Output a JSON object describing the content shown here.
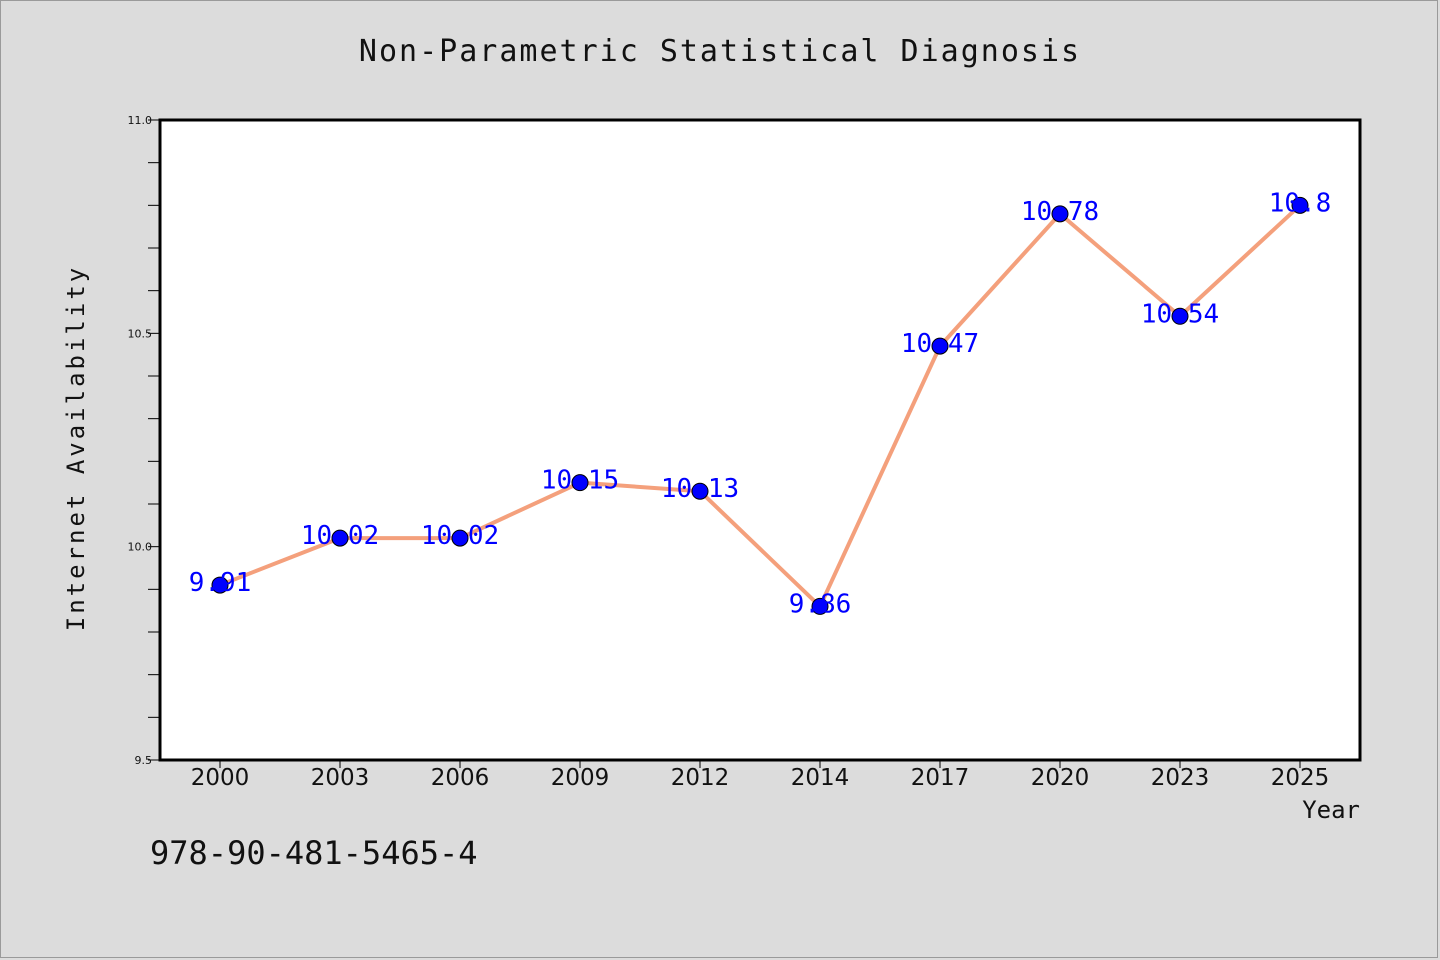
{
  "chart_data": {
    "type": "line",
    "title": "Non-Parametric Statistical Diagnosis",
    "xlabel": "Year",
    "ylabel": "Internet Availability",
    "categories": [
      "2000",
      "2003",
      "2006",
      "2009",
      "2012",
      "2014",
      "2017",
      "2020",
      "2023",
      "2025"
    ],
    "values": [
      9.91,
      10.02,
      10.02,
      10.15,
      10.13,
      9.86,
      10.47,
      10.78,
      10.54,
      10.8
    ],
    "data_labels": [
      "9.91",
      "10.02",
      "10.02",
      "10.15",
      "10.13",
      "9.86",
      "10.47",
      "10.78",
      "10.54",
      "10.8"
    ],
    "ylim": [
      9.5,
      11.0
    ],
    "yticks": [
      "9.5",
      "10.0",
      "10.5",
      "11.0"
    ],
    "grid": false,
    "colors": {
      "line": "#f4a07c",
      "marker": "#0000ff",
      "label": "#0000ff",
      "background": "#dcdcdc",
      "plot_area": "#ffffff"
    }
  },
  "footer": {
    "isbn": "978-90-481-5465-4"
  }
}
